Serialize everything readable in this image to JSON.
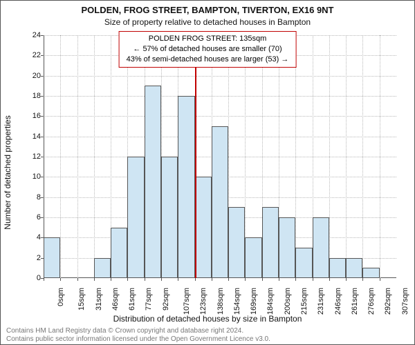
{
  "title_line1": "POLDEN, FROG STREET, BAMPTON, TIVERTON, EX16 9NT",
  "title_line2": "Size of property relative to detached houses in Bampton",
  "annotation": {
    "line1": "POLDEN FROG STREET: 135sqm",
    "line2": "← 57% of detached houses are smaller (70)",
    "line3": "43% of semi-detached houses are larger (53) →",
    "border_color": "#c00000"
  },
  "chart": {
    "type": "histogram",
    "xlabel": "Distribution of detached houses by size in Bampton",
    "ylabel": "Number of detached properties",
    "ylim": [
      0,
      24
    ],
    "ytick_step": 2,
    "x_bin_width": 15,
    "x_categories": [
      "0sqm",
      "15sqm",
      "31sqm",
      "46sqm",
      "61sqm",
      "77sqm",
      "92sqm",
      "107sqm",
      "123sqm",
      "138sqm",
      "154sqm",
      "169sqm",
      "184sqm",
      "200sqm",
      "215sqm",
      "231sqm",
      "246sqm",
      "261sqm",
      "276sqm",
      "292sqm",
      "307sqm"
    ],
    "values": [
      4,
      0,
      0,
      2,
      5,
      12,
      19,
      12,
      18,
      10,
      15,
      7,
      4,
      7,
      6,
      3,
      6,
      2,
      2,
      1,
      0
    ],
    "bar_color": "#cfe5f3",
    "bar_border_color": "#555555",
    "grid_color": "#b8b8b8",
    "background_color": "#ffffff",
    "reference_line": {
      "x_value": 135,
      "x_max": 315,
      "color": "#c00000"
    },
    "label_fontsize": 12,
    "tick_fontsize": 11
  },
  "footer": {
    "line1": "Contains HM Land Registry data © Crown copyright and database right 2024.",
    "line2": "Contains public sector information licensed under the Open Government Licence v3.0."
  }
}
